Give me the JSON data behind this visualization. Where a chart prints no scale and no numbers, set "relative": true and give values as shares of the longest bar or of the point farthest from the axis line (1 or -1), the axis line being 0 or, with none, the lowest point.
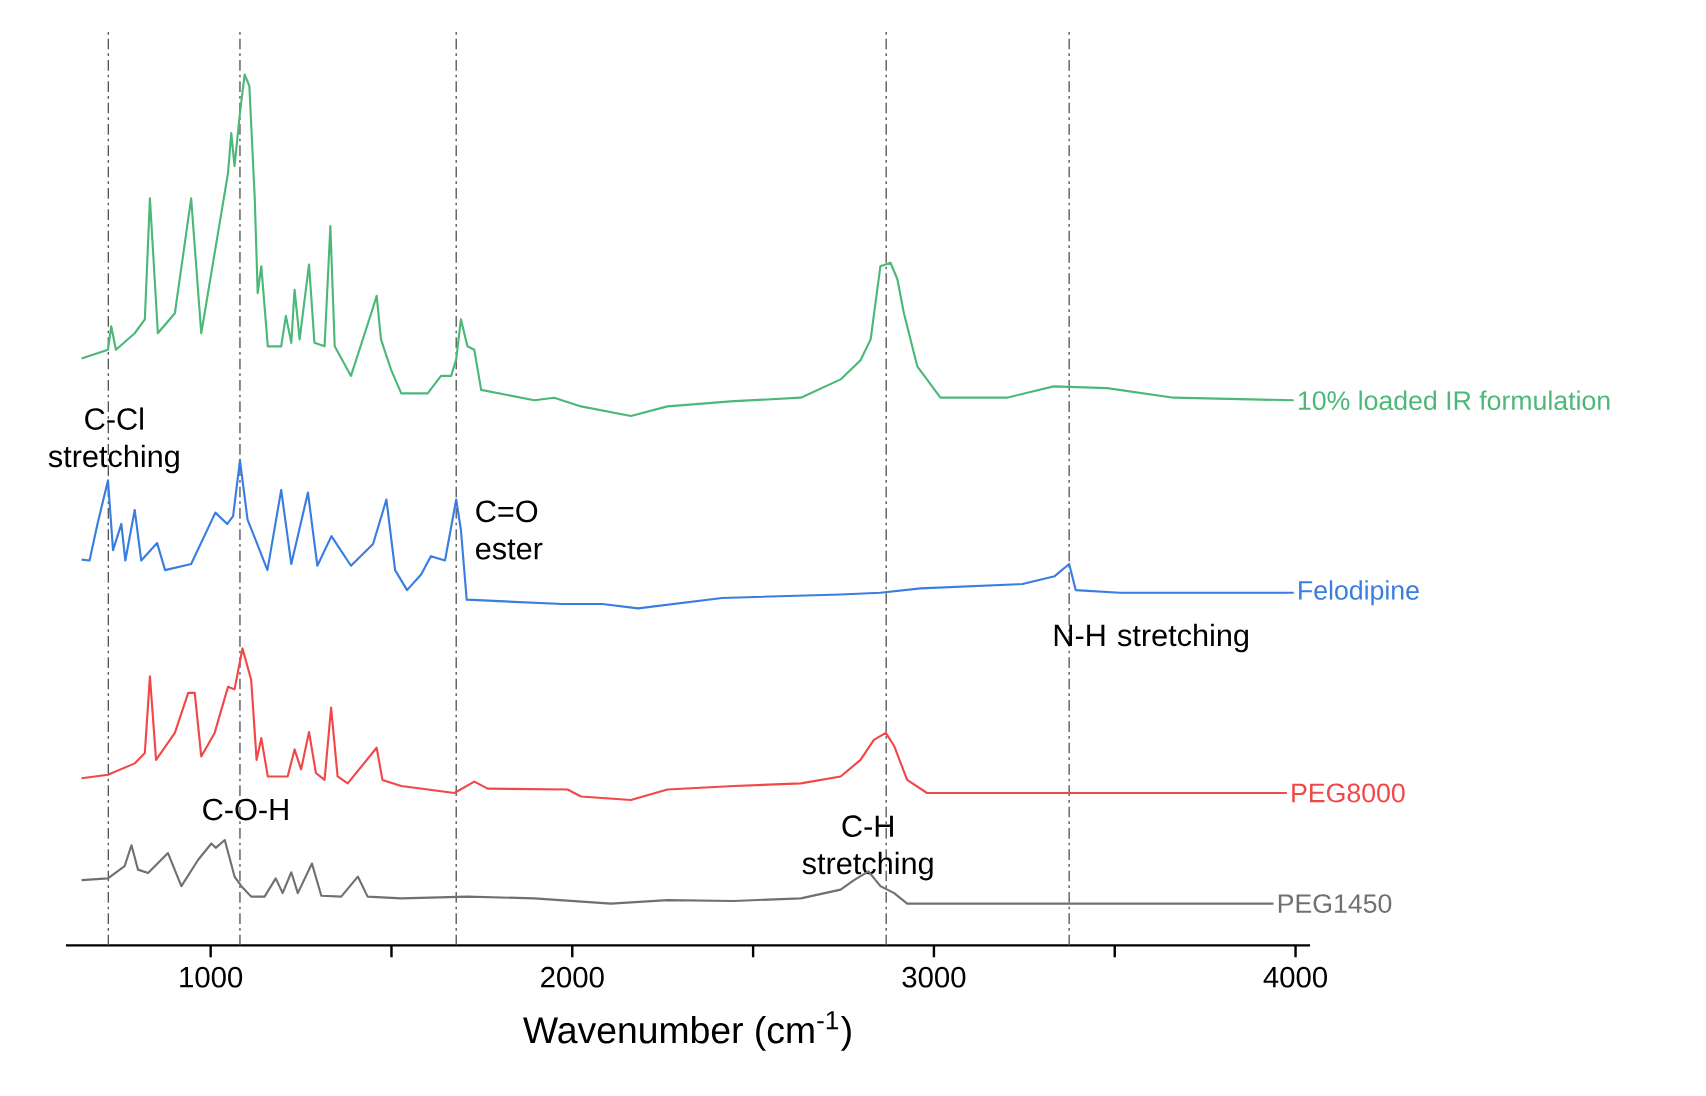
{
  "chart_data": {
    "type": "line",
    "relative": true,
    "xlabel": "Wavenumber (cm$^{-1}$)",
    "xlim": [
      600,
      4040
    ],
    "xticks": [
      1000,
      {
        "value": 1500,
        "label": null
      },
      2000,
      {
        "value": 2500,
        "label": null
      },
      3000,
      {
        "value": 3500,
        "label": null
      },
      4000
    ],
    "series": [
      {
        "name": "10% loaded IR formulation",
        "color": "#4cb878",
        "x": [
          643,
          716,
          725,
          738,
          790,
          818,
          832,
          854,
          901,
          946,
          974,
          1011,
          1048,
          1057,
          1066,
          1081,
          1094,
          1107,
          1122,
          1130,
          1140,
          1158,
          1195,
          1208,
          1223,
          1232,
          1246,
          1272,
          1287,
          1315,
          1331,
          1343,
          1388,
          1444,
          1459,
          1471,
          1499,
          1527,
          1600,
          1637,
          1665,
          1679,
          1692,
          1710,
          1729,
          1748,
          1895,
          1950,
          2024,
          2162,
          2263,
          2447,
          2632,
          2742,
          2797,
          2825,
          2852,
          2880,
          2899,
          2917,
          2954,
          3018,
          3202,
          3331,
          3479,
          3663,
          3995
        ],
        "values": [
          0.674,
          0.684,
          0.711,
          0.684,
          0.703,
          0.719,
          0.858,
          0.703,
          0.726,
          0.858,
          0.703,
          0.795,
          0.887,
          0.933,
          0.895,
          0.956,
          1.0,
          0.987,
          0.857,
          0.749,
          0.78,
          0.688,
          0.688,
          0.723,
          0.692,
          0.753,
          0.696,
          0.782,
          0.692,
          0.688,
          0.826,
          0.688,
          0.654,
          0.726,
          0.746,
          0.696,
          0.661,
          0.634,
          0.634,
          0.654,
          0.654,
          0.673,
          0.719,
          0.688,
          0.684,
          0.638,
          0.626,
          0.629,
          0.619,
          0.608,
          0.619,
          0.625,
          0.629,
          0.65,
          0.672,
          0.696,
          0.78,
          0.784,
          0.765,
          0.726,
          0.665,
          0.629,
          0.629,
          0.642,
          0.64,
          0.629,
          0.626
        ]
      },
      {
        "name": "Felodipine",
        "color": "#3a7de0",
        "x": [
          643,
          665,
          687,
          716,
          730,
          753,
          764,
          790,
          808,
          852,
          874,
          946,
          1013,
          1046,
          1062,
          1081,
          1102,
          1124,
          1157,
          1195,
          1223,
          1269,
          1295,
          1334,
          1388,
          1449,
          1486,
          1510,
          1543,
          1582,
          1609,
          1648,
          1679,
          1692,
          1708,
          1973,
          2083,
          2182,
          2414,
          2742,
          2852,
          2963,
          3245,
          3334,
          3374,
          3392,
          3514,
          3735,
          3995
        ],
        "values": [
          0.443,
          0.442,
          0.484,
          0.534,
          0.454,
          0.484,
          0.442,
          0.5,
          0.442,
          0.462,
          0.431,
          0.438,
          0.497,
          0.484,
          0.493,
          0.557,
          0.489,
          0.466,
          0.431,
          0.523,
          0.438,
          0.52,
          0.436,
          0.47,
          0.436,
          0.461,
          0.512,
          0.431,
          0.408,
          0.426,
          0.447,
          0.442,
          0.512,
          0.477,
          0.397,
          0.392,
          0.392,
          0.387,
          0.399,
          0.403,
          0.405,
          0.41,
          0.415,
          0.424,
          0.438,
          0.408,
          0.405,
          0.405,
          0.405
        ]
      },
      {
        "name": "PEG8000",
        "color": "#f04848",
        "x": [
          643,
          716,
          790,
          818,
          832,
          849,
          901,
          938,
          956,
          974,
          1011,
          1048,
          1066,
          1088,
          1112,
          1127,
          1140,
          1158,
          1213,
          1232,
          1250,
          1272,
          1291,
          1315,
          1333,
          1351,
          1379,
          1459,
          1475,
          1527,
          1674,
          1729,
          1766,
          1987,
          2024,
          2162,
          2263,
          2447,
          2632,
          2742,
          2797,
          2834,
          2867,
          2890,
          2926,
          2981,
          3299,
          3976
        ],
        "values": [
          0.192,
          0.196,
          0.209,
          0.221,
          0.309,
          0.213,
          0.244,
          0.29,
          0.29,
          0.217,
          0.244,
          0.297,
          0.294,
          0.341,
          0.305,
          0.213,
          0.238,
          0.194,
          0.194,
          0.225,
          0.202,
          0.245,
          0.198,
          0.19,
          0.273,
          0.194,
          0.186,
          0.227,
          0.19,
          0.183,
          0.175,
          0.188,
          0.18,
          0.179,
          0.171,
          0.167,
          0.179,
          0.183,
          0.186,
          0.194,
          0.213,
          0.236,
          0.244,
          0.229,
          0.19,
          0.175,
          0.175,
          0.175
        ]
      },
      {
        "name": "PEG1450",
        "color": "#707070",
        "x": [
          643,
          716,
          762,
          781,
          799,
          827,
          882,
          919,
          965,
          1002,
          1014,
          1039,
          1066,
          1085,
          1112,
          1149,
          1180,
          1199,
          1223,
          1241,
          1280,
          1306,
          1361,
          1407,
          1434,
          1527,
          1711,
          1895,
          2107,
          2263,
          2447,
          2632,
          2742,
          2779,
          2819,
          2852,
          2890,
          2926,
          3939
        ],
        "values": [
          0.075,
          0.077,
          0.091,
          0.115,
          0.087,
          0.083,
          0.106,
          0.068,
          0.098,
          0.117,
          0.112,
          0.121,
          0.079,
          0.068,
          0.056,
          0.056,
          0.077,
          0.06,
          0.084,
          0.06,
          0.094,
          0.057,
          0.056,
          0.079,
          0.056,
          0.054,
          0.056,
          0.054,
          0.048,
          0.052,
          0.051,
          0.054,
          0.064,
          0.075,
          0.085,
          0.068,
          0.06,
          0.048,
          0.048
        ]
      }
    ],
    "ref_lines": [
      {
        "axis": "x",
        "value": 717,
        "label": "C-Cl stretching",
        "color": "#555555",
        "line_style": "dashed"
      },
      {
        "axis": "x",
        "value": 1081,
        "label": "C-O-H",
        "color": "#555555",
        "line_style": "dashed"
      },
      {
        "axis": "x",
        "value": 1679,
        "label": "C=O ester",
        "color": "#555555",
        "line_style": "dashed"
      },
      {
        "axis": "x",
        "value": 2868,
        "label": "C-H stretching",
        "color": "#555555",
        "line_style": "dashed"
      },
      {
        "axis": "x",
        "value": 3374,
        "label": "N-H stretching",
        "color": "#555555",
        "line_style": "dashed"
      }
    ]
  }
}
